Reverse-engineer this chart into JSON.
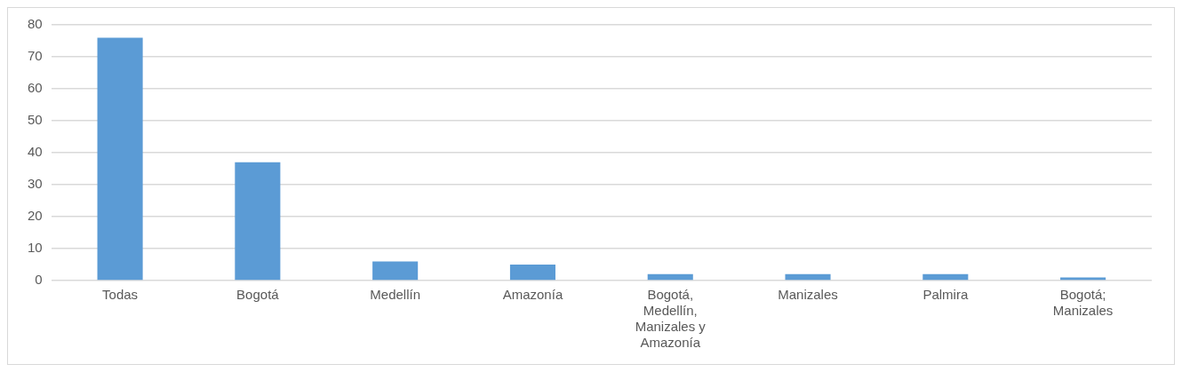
{
  "chart_data": {
    "type": "bar",
    "categories": [
      "Todas",
      "Bogotá",
      "Medellín",
      "Amazonía",
      "Bogotá, Medellín, Manizales y Amazonía",
      "Manizales",
      "Palmira",
      "Bogotá; Manizales"
    ],
    "values": [
      76,
      37,
      6,
      5,
      2,
      2,
      2,
      1
    ],
    "color": "#5b9bd5",
    "ylim": [
      0,
      80
    ],
    "yticks": [
      0,
      10,
      20,
      30,
      40,
      50,
      60,
      70,
      80
    ],
    "grid": "y",
    "legend": false
  }
}
